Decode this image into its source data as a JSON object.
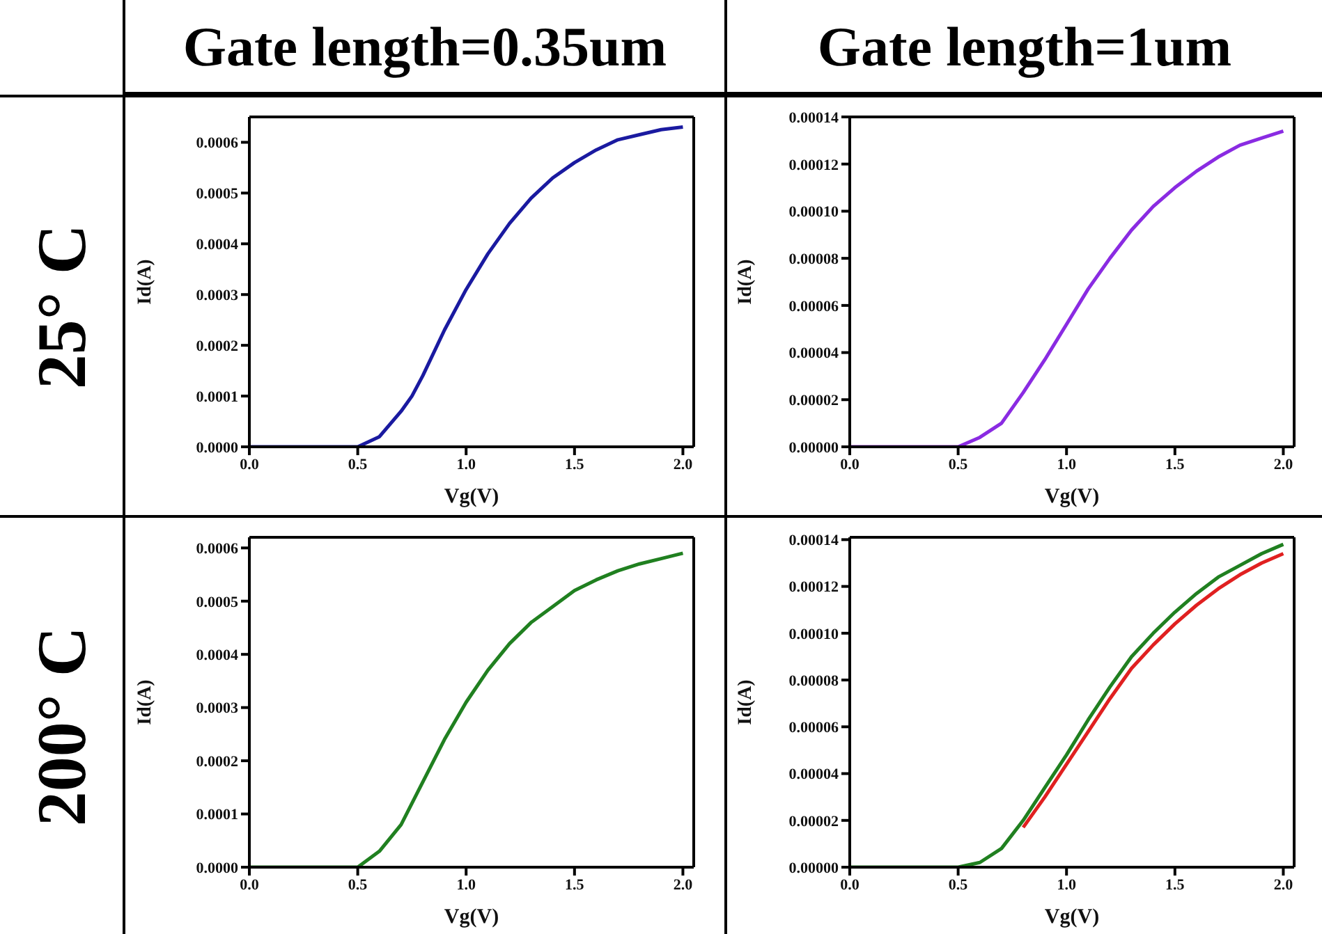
{
  "chart_data": [
    {
      "type": "line",
      "title": "Gate length=0.35um",
      "annotations": [
        "25° C"
      ],
      "xlabel": "Vg(V)",
      "ylabel": "Id(A)",
      "xlim": [
        0,
        2.05
      ],
      "xticks": [
        {
          "value": 0,
          "label": "0.0"
        },
        {
          "value": 0.5,
          "label": "0.5"
        },
        {
          "value": 1,
          "label": "1.0"
        },
        {
          "value": 1.5,
          "label": "1.5"
        },
        {
          "value": 2,
          "label": "2.0"
        }
      ],
      "ylim": [
        0,
        0.00065
      ],
      "yticks": [
        {
          "value": 0,
          "label": "0.0000"
        },
        {
          "value": 0.0001,
          "label": "0.0001"
        },
        {
          "value": 0.0002,
          "label": "0.0002"
        },
        {
          "value": 0.0003,
          "label": "0.0003"
        },
        {
          "value": 0.0004,
          "label": "0.0004"
        },
        {
          "value": 0.0005,
          "label": "0.0005"
        },
        {
          "value": 0.0006,
          "label": "0.0006"
        }
      ],
      "grid": false,
      "marker": "none",
      "line_style": "solid",
      "x": [
        0,
        0.25,
        0.4,
        0.5,
        0.55,
        0.6,
        0.7,
        0.75,
        0.8,
        0.9,
        1.0,
        1.1,
        1.2,
        1.3,
        1.4,
        1.5,
        1.6,
        1.7,
        1.8,
        1.9,
        2.0
      ],
      "series": [
        {
          "color": "#1a1aa0",
          "values": [
            0,
            0,
            0,
            0,
            1e-05,
            2e-05,
            7e-05,
            0.0001,
            0.00014,
            0.00023,
            0.00031,
            0.00038,
            0.00044,
            0.00049,
            0.00053,
            0.00056,
            0.000585,
            0.000605,
            0.000615,
            0.000625,
            0.00063
          ]
        }
      ]
    },
    {
      "type": "line",
      "title": "Gate length=1um",
      "xlabel": "Vg(V)",
      "ylabel": "Id(A)",
      "xlim": [
        0,
        2.05
      ],
      "xticks": [
        {
          "value": 0,
          "label": "0.0"
        },
        {
          "value": 0.5,
          "label": "0.5"
        },
        {
          "value": 1,
          "label": "1.0"
        },
        {
          "value": 1.5,
          "label": "1.5"
        },
        {
          "value": 2,
          "label": "2.0"
        }
      ],
      "ylim": [
        0,
        0.00014
      ],
      "yticks": [
        {
          "value": 0,
          "label": "0.00000"
        },
        {
          "value": 2e-05,
          "label": "0.00002"
        },
        {
          "value": 4e-05,
          "label": "0.00004"
        },
        {
          "value": 6e-05,
          "label": "0.00006"
        },
        {
          "value": 8e-05,
          "label": "0.00008"
        },
        {
          "value": 0.0001,
          "label": "0.00010"
        },
        {
          "value": 0.00012,
          "label": "0.00012"
        },
        {
          "value": 0.00014,
          "label": "0.00014"
        }
      ],
      "grid": false,
      "marker": "none",
      "line_style": "solid",
      "x": [
        0,
        0.25,
        0.4,
        0.5,
        0.6,
        0.7,
        0.8,
        0.9,
        1.0,
        1.1,
        1.2,
        1.3,
        1.4,
        1.5,
        1.6,
        1.7,
        1.8,
        1.9,
        2.0
      ],
      "series": [
        {
          "color": "#8a2be2",
          "values": [
            0,
            0,
            0,
            0,
            4e-06,
            1e-05,
            2.3e-05,
            3.7e-05,
            5.2e-05,
            6.7e-05,
            8e-05,
            9.2e-05,
            0.000102,
            0.00011,
            0.000117,
            0.000123,
            0.000128,
            0.000131,
            0.000134
          ]
        }
      ]
    },
    {
      "type": "line",
      "annotations": [
        "200° C"
      ],
      "xlabel": "Vg(V)",
      "ylabel": "Id(A)",
      "xlim": [
        0,
        2.05
      ],
      "xticks": [
        {
          "value": 0,
          "label": "0.0"
        },
        {
          "value": 0.5,
          "label": "0.5"
        },
        {
          "value": 1,
          "label": "1.0"
        },
        {
          "value": 1.5,
          "label": "1.5"
        },
        {
          "value": 2,
          "label": "2.0"
        }
      ],
      "ylim": [
        0,
        0.00062
      ],
      "yticks": [
        {
          "value": 0,
          "label": "0.0000"
        },
        {
          "value": 0.0001,
          "label": "0.0001"
        },
        {
          "value": 0.0002,
          "label": "0.0002"
        },
        {
          "value": 0.0003,
          "label": "0.0003"
        },
        {
          "value": 0.0004,
          "label": "0.0004"
        },
        {
          "value": 0.0005,
          "label": "0.0005"
        },
        {
          "value": 0.0006,
          "label": "0.0006"
        }
      ],
      "grid": false,
      "marker": "none",
      "line_style": "solid",
      "x": [
        0,
        0.25,
        0.4,
        0.5,
        0.6,
        0.7,
        0.8,
        0.9,
        1.0,
        1.1,
        1.2,
        1.3,
        1.4,
        1.5,
        1.6,
        1.7,
        1.8,
        1.9,
        2.0
      ],
      "series": [
        {
          "color": "#208020",
          "values": [
            0,
            0,
            0,
            0,
            3e-05,
            8e-05,
            0.00016,
            0.00024,
            0.00031,
            0.00037,
            0.00042,
            0.00046,
            0.00049,
            0.00052,
            0.00054,
            0.000557,
            0.00057,
            0.00058,
            0.00059
          ]
        }
      ]
    },
    {
      "type": "line",
      "xlabel": "Vg(V)",
      "ylabel": "Id(A)",
      "xlim": [
        0,
        2.05
      ],
      "xticks": [
        {
          "value": 0,
          "label": "0.0"
        },
        {
          "value": 0.5,
          "label": "0.5"
        },
        {
          "value": 1,
          "label": "1.0"
        },
        {
          "value": 1.5,
          "label": "1.5"
        },
        {
          "value": 2,
          "label": "2.0"
        }
      ],
      "ylim": [
        0,
        0.000141
      ],
      "yticks": [
        {
          "value": 0,
          "label": "0.00000"
        },
        {
          "value": 2e-05,
          "label": "0.00002"
        },
        {
          "value": 4e-05,
          "label": "0.00004"
        },
        {
          "value": 6e-05,
          "label": "0.00006"
        },
        {
          "value": 8e-05,
          "label": "0.00008"
        },
        {
          "value": 0.0001,
          "label": "0.00010"
        },
        {
          "value": 0.00012,
          "label": "0.00012"
        },
        {
          "value": 0.00014,
          "label": "0.00014"
        }
      ],
      "grid": false,
      "marker": "none",
      "line_style": "solid",
      "x": [
        0,
        0.25,
        0.5,
        0.6,
        0.7,
        0.8,
        0.9,
        1.0,
        1.1,
        1.2,
        1.3,
        1.4,
        1.5,
        1.6,
        1.7,
        1.8,
        1.9,
        2.0
      ],
      "series": [
        {
          "color": "#e02020",
          "values": [
            null,
            null,
            null,
            null,
            null,
            1.7e-05,
            3e-05,
            4.4e-05,
            5.8e-05,
            7.2e-05,
            8.5e-05,
            9.5e-05,
            0.000104,
            0.000112,
            0.000119,
            0.000125,
            0.00013,
            0.000134
          ]
        },
        {
          "color": "#208020",
          "values": [
            0,
            0,
            0,
            2e-06,
            8e-06,
            2e-05,
            3.4e-05,
            4.8e-05,
            6.3e-05,
            7.7e-05,
            9e-05,
            0.0001,
            0.000109,
            0.000117,
            0.000124,
            0.000129,
            0.000134,
            0.000138
          ]
        }
      ]
    }
  ]
}
